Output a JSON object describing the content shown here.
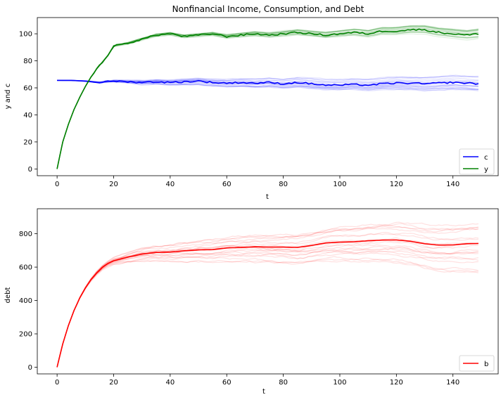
{
  "chart_data": [
    {
      "type": "line",
      "title": "Nonfinancial Income, Consumption, and Debt",
      "xlabel": "t",
      "ylabel": "y and c",
      "xlim": [
        -7,
        156
      ],
      "ylim": [
        -5,
        112
      ],
      "x_ticks": [
        0,
        20,
        40,
        60,
        80,
        100,
        120,
        140
      ],
      "y_ticks": [
        0,
        20,
        40,
        60,
        80,
        100
      ],
      "legend": {
        "position": "bottom-right",
        "entries": [
          "c",
          "y"
        ]
      },
      "colors": {
        "c": "#0000ff",
        "y": "#008000"
      },
      "ensemble": {
        "count": 20,
        "opacity": 0.12
      },
      "series": [
        {
          "name": "c",
          "x": [
            0,
            5,
            10,
            15,
            20,
            25,
            30,
            35,
            40,
            45,
            50,
            55,
            60,
            65,
            70,
            75,
            80,
            85,
            90,
            95,
            100,
            105,
            110,
            115,
            120,
            125,
            130,
            135,
            140,
            145,
            149
          ],
          "values": [
            65.5,
            65.5,
            65,
            64,
            65,
            64.5,
            64,
            64.5,
            64,
            64.5,
            65,
            64,
            63.5,
            64,
            63.5,
            64,
            63,
            64,
            63,
            62,
            62,
            62.5,
            62,
            63,
            63.5,
            63.5,
            63,
            63.5,
            64,
            63.5,
            63
          ]
        },
        {
          "name": "y",
          "x": [
            0,
            2,
            4,
            6,
            8,
            10,
            12,
            14,
            16,
            18,
            20,
            25,
            30,
            35,
            40,
            45,
            50,
            55,
            60,
            65,
            70,
            75,
            80,
            85,
            90,
            95,
            100,
            105,
            110,
            115,
            120,
            125,
            130,
            135,
            140,
            145,
            149
          ],
          "values": [
            0,
            20,
            33,
            44,
            53,
            61,
            68,
            74,
            79,
            84,
            91,
            93,
            96,
            99,
            100,
            98,
            99,
            100,
            98,
            99,
            100,
            99,
            100,
            101,
            100,
            99,
            100,
            101,
            100,
            102,
            102,
            103,
            103,
            101,
            100,
            99,
            100
          ]
        }
      ]
    },
    {
      "type": "line",
      "title": "",
      "xlabel": "t",
      "ylabel": "debt",
      "xlim": [
        -7,
        156
      ],
      "ylim": [
        -40,
        950
      ],
      "x_ticks": [
        0,
        20,
        40,
        60,
        80,
        100,
        120,
        140
      ],
      "y_ticks": [
        0,
        200,
        400,
        600,
        800
      ],
      "legend": {
        "position": "bottom-right",
        "entries": [
          "b"
        ]
      },
      "colors": {
        "b": "#ff0000"
      },
      "ensemble": {
        "count": 20,
        "opacity": 0.12
      },
      "series": [
        {
          "name": "b",
          "x": [
            0,
            2,
            4,
            6,
            8,
            10,
            12,
            14,
            16,
            18,
            20,
            25,
            30,
            35,
            40,
            45,
            50,
            55,
            60,
            65,
            70,
            75,
            80,
            85,
            90,
            95,
            100,
            105,
            110,
            115,
            120,
            125,
            130,
            135,
            140,
            145,
            149
          ],
          "values": [
            0,
            140,
            250,
            340,
            415,
            475,
            525,
            565,
            598,
            622,
            638,
            660,
            678,
            688,
            690,
            698,
            703,
            705,
            715,
            718,
            722,
            720,
            720,
            718,
            730,
            745,
            750,
            752,
            758,
            762,
            763,
            755,
            740,
            732,
            733,
            740,
            742
          ]
        }
      ]
    }
  ]
}
